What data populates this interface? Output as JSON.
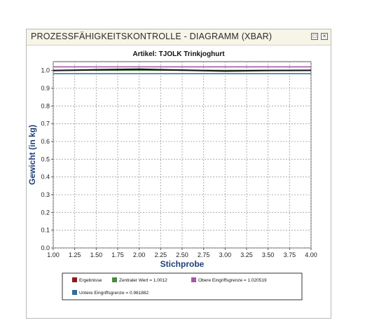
{
  "window": {
    "title": "PROZESSFÄHIGKEITSKONTROLLE - DIAGRAMM (XBAR)",
    "restore_icon": "restore-icon",
    "close_icon": "close-icon"
  },
  "chart_data": {
    "type": "line",
    "title": "Artikel:  TJOLK Trinkjoghurt",
    "xlabel": "Stichprobe",
    "ylabel": "Gewicht  (in kg)",
    "xlim": [
      1.0,
      4.0
    ],
    "ylim": [
      0.0,
      1.05
    ],
    "grid": true,
    "legend_position": "bottom",
    "x_ticks": [
      "1.00",
      "1.25",
      "1.50",
      "1.75",
      "2.00",
      "2.25",
      "2.50",
      "2.75",
      "3.00",
      "3.25",
      "3.50",
      "3.75",
      "4.00"
    ],
    "y_ticks": [
      "0.0",
      "0.1",
      "0.2",
      "0.3",
      "0.4",
      "0.5",
      "0.6",
      "0.7",
      "0.8",
      "0.9",
      "1.0"
    ],
    "series": [
      {
        "name": "Ergebnisse",
        "color": "#8b1a1a",
        "x": [
          1.0,
          1.5,
          2.0,
          2.5,
          3.0,
          3.5,
          4.0
        ],
        "y": [
          1.0,
          1.004,
          1.007,
          1.002,
          0.997,
          1.0,
          1.001
        ]
      },
      {
        "name": "Zentraler Wert = 1.0012",
        "color": "#4b8a3c",
        "x": [
          1.0,
          4.0
        ],
        "y": [
          1.0012,
          1.0012
        ]
      },
      {
        "name": "Obere Eingriffsgrenze = 1.020519",
        "color": "#a05aa8",
        "x": [
          1.0,
          4.0
        ],
        "y": [
          1.020519,
          1.020519
        ]
      },
      {
        "name": "Untere Eingriffsgrenze = 0.981882",
        "color": "#2e6e9e",
        "x": [
          1.0,
          4.0
        ],
        "y": [
          0.981882,
          0.981882
        ]
      }
    ],
    "data_line_color": "#1a1a1a"
  }
}
